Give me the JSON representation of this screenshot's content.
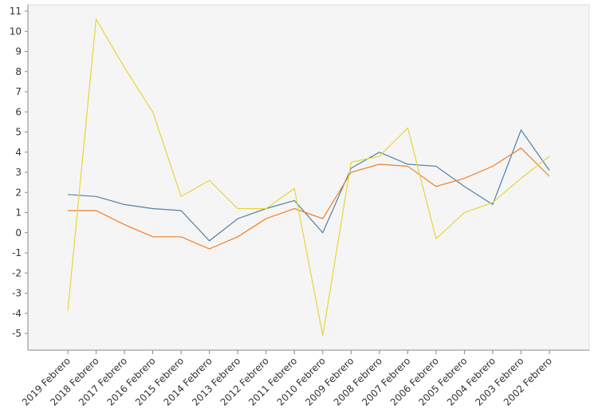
{
  "chart_data": {
    "type": "line",
    "title": "",
    "xlabel": "",
    "ylabel": "",
    "ylim": [
      -5.5,
      11.3
    ],
    "yticks": [
      -5,
      -4,
      -3,
      -2,
      -1,
      0,
      1,
      2,
      3,
      4,
      5,
      6,
      7,
      8,
      9,
      10,
      11
    ],
    "grid": false,
    "legend": "none",
    "categories": [
      "2019 Febrero",
      "2018 Febrero",
      "2017 Febrero",
      "2016 Febrero",
      "2015 Febrero",
      "2014 Febrero",
      "2013 Febrero",
      "2012 Febrero",
      "2011 Febrero",
      "2010 Febrero",
      "2009 Febrero",
      "2008 Febrero",
      "2007 Febrero",
      "2006 Febrero",
      "2005 Febrero",
      "2004 Febrero",
      "2003 Febrero",
      "2002 Febrero"
    ],
    "series": [
      {
        "color": "#4f81a8",
        "values": [
          1.9,
          1.8,
          1.4,
          1.2,
          1.1,
          -0.4,
          0.7,
          1.2,
          1.6,
          0.0,
          3.2,
          4.0,
          3.4,
          3.3,
          2.3,
          1.4,
          5.1,
          3.1
        ]
      },
      {
        "color": "#f07f26",
        "values": [
          1.1,
          1.1,
          0.4,
          -0.2,
          -0.2,
          -0.8,
          -0.2,
          0.7,
          1.2,
          0.7,
          3.0,
          3.4,
          3.3,
          2.3,
          2.7,
          3.3,
          4.2,
          2.8
        ]
      },
      {
        "color": "#e8d53a",
        "values": [
          -3.9,
          10.6,
          8.2,
          6.0,
          1.8,
          2.6,
          1.2,
          1.2,
          2.2,
          -5.1,
          3.5,
          3.8,
          5.2,
          -0.3,
          1.0,
          1.5,
          2.7,
          3.8
        ]
      }
    ]
  }
}
